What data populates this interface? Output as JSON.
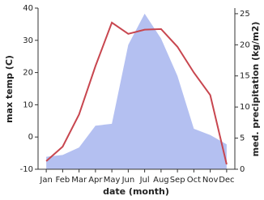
{
  "chart_data": {
    "type": "line-area",
    "x_label": "date (month)",
    "y_label": "max temp (C)",
    "y2_label": "med. precipitation (kg/m2)",
    "categories": [
      "Jan",
      "Feb",
      "Mar",
      "Apr",
      "May",
      "Jun",
      "Jul",
      "Aug",
      "Sep",
      "Oct",
      "Nov",
      "Dec"
    ],
    "series": [
      {
        "name": "max temp",
        "type": "line",
        "color": "#c8464f",
        "values": [
          -7.5,
          -3,
          7,
          22,
          35.5,
          32,
          33.3,
          33.5,
          28,
          20,
          13,
          -8.5
        ]
      },
      {
        "name": "med. precipitation",
        "type": "area",
        "axis": "y2",
        "color": "#b0bdf0",
        "values": [
          2,
          2.3,
          3.5,
          7,
          7.3,
          20,
          25,
          21,
          15,
          6.5,
          5.5,
          4
        ]
      }
    ],
    "ylim": [
      -10,
      40
    ],
    "yticks": [
      -10,
      0,
      10,
      20,
      30,
      40
    ],
    "y2lim": [
      0,
      25.9
    ],
    "y2ticks": [
      0,
      5,
      10,
      15,
      20,
      25
    ]
  }
}
